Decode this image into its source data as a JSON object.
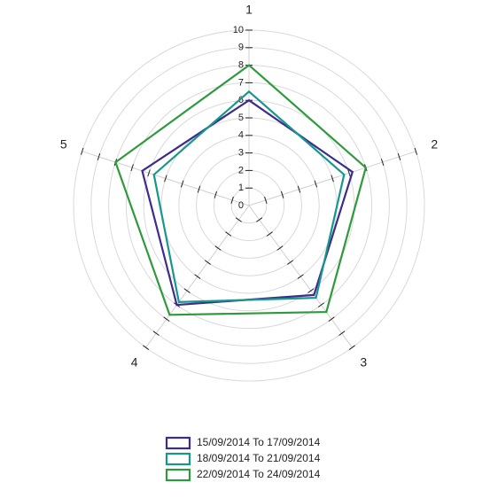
{
  "chart_data": {
    "type": "radar",
    "categories": [
      "1",
      "2",
      "3",
      "4",
      "5"
    ],
    "rlim": [
      0,
      10
    ],
    "rticks": [
      0,
      1,
      2,
      3,
      4,
      5,
      6,
      7,
      8,
      9,
      10
    ],
    "grid": true,
    "legend": "bottom",
    "series": [
      {
        "name": "15/09/2014 To 17/09/2014",
        "color": "#3d2b8e",
        "values": [
          6,
          6.2,
          6.3,
          7,
          6.4
        ]
      },
      {
        "name": "18/09/2014 To 21/09/2014",
        "color": "#17978c",
        "values": [
          6.5,
          5.7,
          6.5,
          6.8,
          5.7
        ]
      },
      {
        "name": "22/09/2014 To 24/09/2014",
        "color": "#2f9a3d",
        "values": [
          8,
          7,
          7.5,
          7.7,
          8
        ]
      }
    ]
  }
}
